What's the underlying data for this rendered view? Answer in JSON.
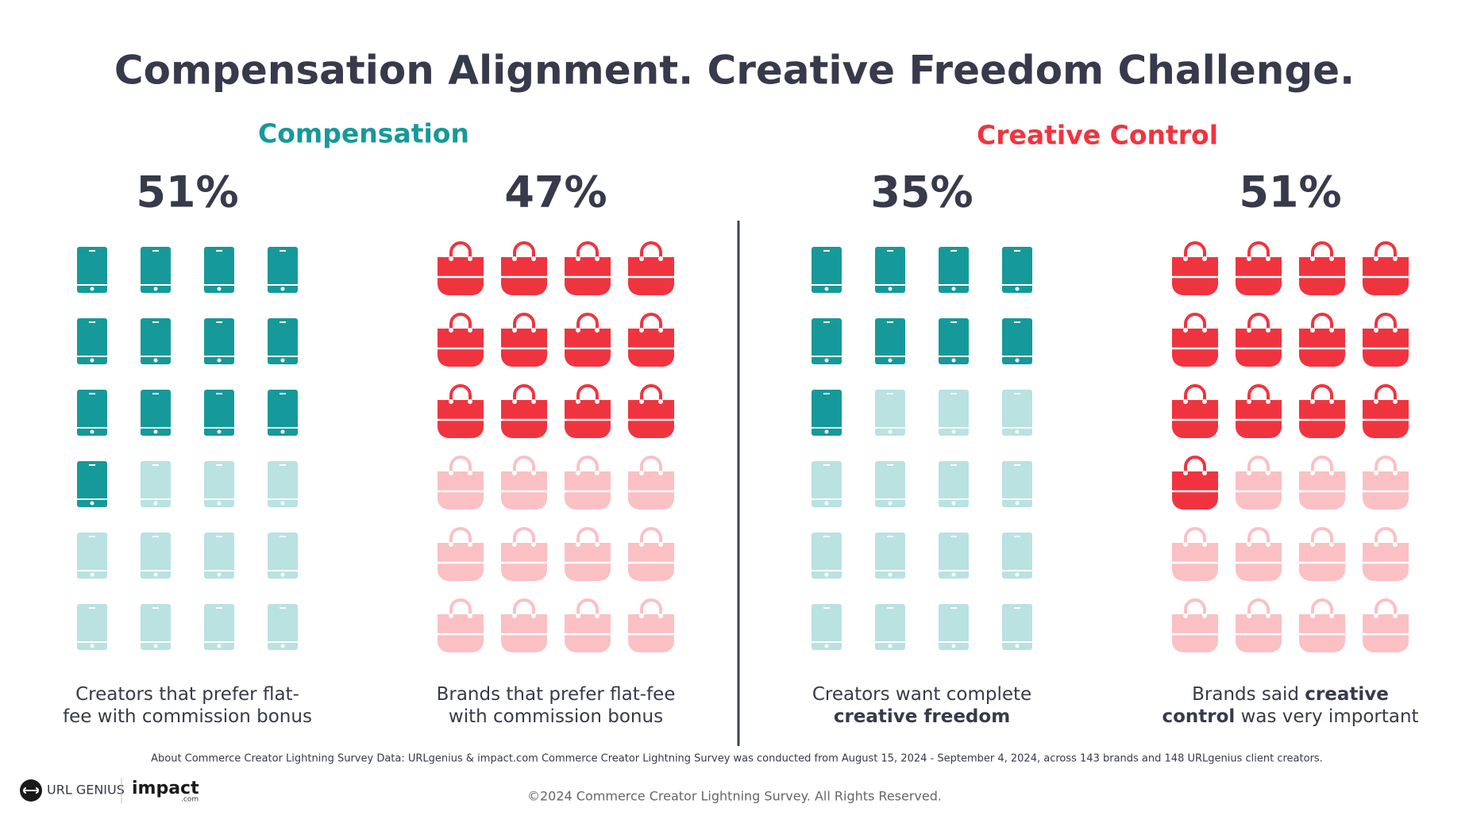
{
  "header": {
    "title": "Compensation Alignment. Creative Freedom Challenge."
  },
  "groups": [
    {
      "title": "Compensation",
      "color": "#16999a"
    },
    {
      "title": "Creative Control",
      "color": "#f0343f"
    }
  ],
  "chart_data": [
    {
      "type": "pictograph",
      "icon": "phone",
      "value": 51,
      "value_label": "51%",
      "icons_filled": 13,
      "icons_total": 24,
      "color": "#16999a",
      "empty_color": "#b9e2e1",
      "caption": [
        [
          {
            "text": "Creators that prefer flat-"
          }
        ],
        [
          {
            "text": "fee with commission bonus"
          }
        ]
      ]
    },
    {
      "type": "pictograph",
      "icon": "bag",
      "value": 47,
      "value_label": "47%",
      "icons_filled": 12,
      "icons_total": 24,
      "color": "#f0343f",
      "empty_color": "#fbc0c4",
      "caption": [
        [
          {
            "text": "Brands that prefer flat-fee"
          }
        ],
        [
          {
            "text": "with commission bonus"
          }
        ]
      ]
    },
    {
      "type": "pictograph",
      "icon": "phone",
      "value": 35,
      "value_label": "35%",
      "icons_filled": 9,
      "icons_total": 24,
      "color": "#16999a",
      "empty_color": "#b9e2e1",
      "caption": [
        [
          {
            "text": "Creators want complete"
          }
        ],
        [
          {
            "text": "creative freedom",
            "bold": true
          }
        ]
      ]
    },
    {
      "type": "pictograph",
      "icon": "bag",
      "value": 51,
      "value_label": "51%",
      "icons_filled": 13,
      "icons_total": 24,
      "color": "#f0343f",
      "empty_color": "#fbc0c4",
      "caption": [
        [
          {
            "text": "Brands said "
          },
          {
            "text": "creative",
            "bold": true
          }
        ],
        [
          {
            "text": "control",
            "bold": true
          },
          {
            "text": " was very important"
          }
        ]
      ]
    }
  ],
  "footer": {
    "note": "About Commerce Creator Lightning Survey Data: URLgenius & impact.com Commerce Creator Lightning Survey was conducted from August 15, 2024 - September 4, 2024, across 143 brands and 148 URLgenius client creators.",
    "copyright": "©2024 Commerce Creator Lightning Survey. All Rights Reserved.",
    "logos": [
      "URL GENIUS",
      "impact",
      ".com"
    ]
  }
}
